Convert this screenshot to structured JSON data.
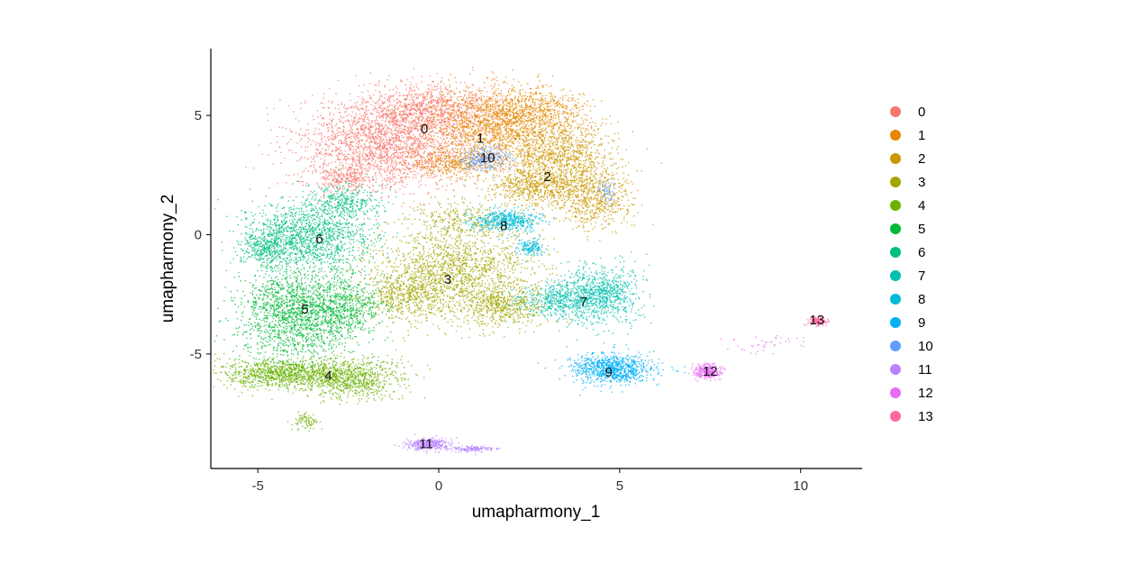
{
  "chart_data": {
    "type": "scatter",
    "title": "",
    "xlabel": "umapharmony_1",
    "ylabel": "umapharmony_2",
    "xlim": [
      -6.3,
      11.7
    ],
    "ylim": [
      -9.8,
      7.8
    ],
    "x_ticks": [
      -5,
      0,
      5,
      10
    ],
    "x_tick_labels": [
      "-5",
      "0",
      "5",
      "10"
    ],
    "y_ticks": [
      5,
      0,
      -5
    ],
    "y_tick_labels": [
      "5",
      "0",
      "-5"
    ],
    "grid": false,
    "legend_position": "right",
    "series": [
      {
        "name": "0",
        "color": "#F8766D",
        "label_at": [
          -0.4,
          4.4
        ]
      },
      {
        "name": "1",
        "color": "#E58700",
        "label_at": [
          1.15,
          4.0
        ]
      },
      {
        "name": "2",
        "color": "#C99800",
        "label_at": [
          3.0,
          2.4
        ]
      },
      {
        "name": "3",
        "color": "#A3A500",
        "label_at": [
          0.25,
          -1.9
        ]
      },
      {
        "name": "4",
        "color": "#6BB100",
        "label_at": [
          -3.05,
          -5.95
        ]
      },
      {
        "name": "5",
        "color": "#00BA38",
        "label_at": [
          -3.7,
          -3.15
        ]
      },
      {
        "name": "6",
        "color": "#00BF7D",
        "label_at": [
          -3.3,
          -0.2
        ]
      },
      {
        "name": "7",
        "color": "#00C0AF",
        "label_at": [
          4.0,
          -2.85
        ]
      },
      {
        "name": "8",
        "color": "#00BCD8",
        "label_at": [
          1.8,
          0.35
        ]
      },
      {
        "name": "9",
        "color": "#00B0F6",
        "label_at": [
          4.7,
          -5.8
        ]
      },
      {
        "name": "10",
        "color": "#619CFF",
        "label_at": [
          1.35,
          3.2
        ]
      },
      {
        "name": "11",
        "color": "#B983FF",
        "label_at": [
          -0.35,
          -8.8
        ]
      },
      {
        "name": "12",
        "color": "#E76BF3",
        "label_at": [
          7.5,
          -5.75
        ]
      },
      {
        "name": "13",
        "color": "#FF67A4",
        "label_at": [
          10.45,
          -3.6
        ]
      }
    ]
  }
}
